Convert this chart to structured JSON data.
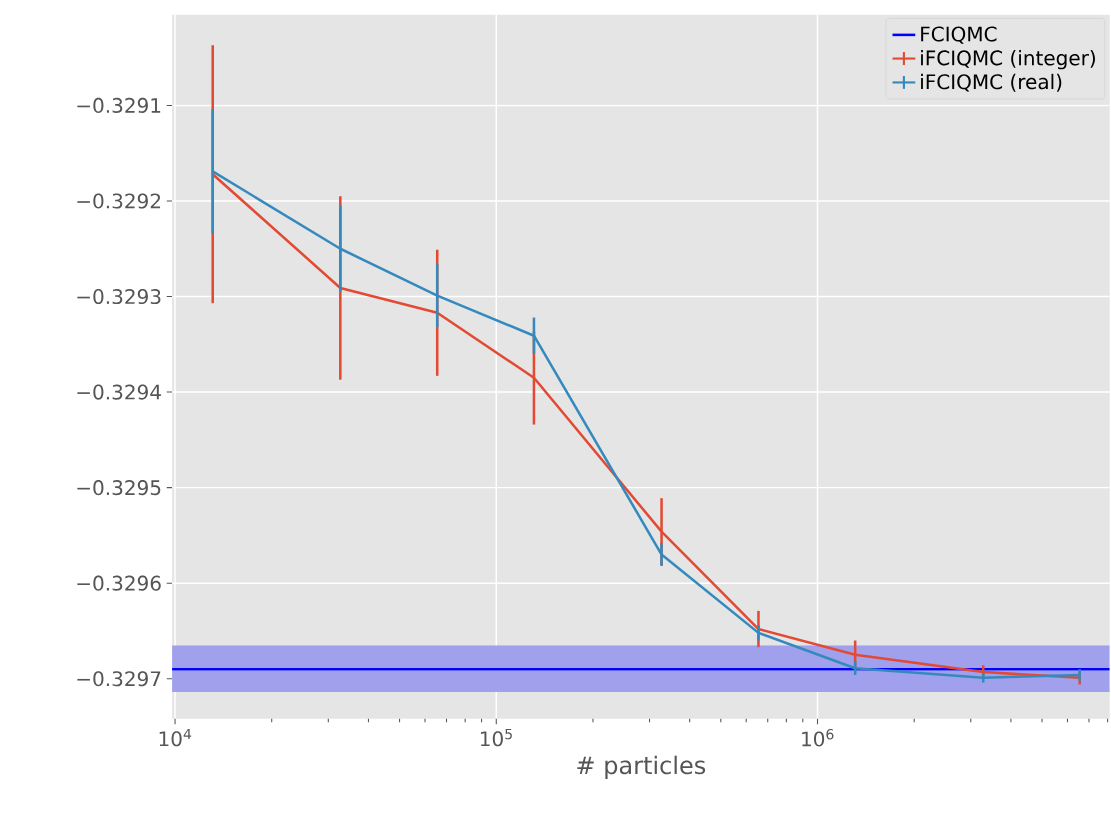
{
  "chart_data": {
    "type": "line",
    "xlabel": "# particles",
    "xlim": [
      9790,
      8120000
    ],
    "ylim": [
      -0.329742,
      -0.329005
    ],
    "log": "x",
    "grid": true,
    "legend": "top right",
    "xticks": [
      {
        "value": 10000,
        "label": "10$^{4}$"
      },
      {
        "value": 100000,
        "label": "10$^{5}$"
      },
      {
        "value": 1000000,
        "label": "10$^{6}$"
      }
    ],
    "yticks": [
      {
        "value": -0.3291,
        "label": "−0.3291"
      },
      {
        "value": -0.3292,
        "label": "−0.3292"
      },
      {
        "value": -0.3293,
        "label": "−0.3293"
      },
      {
        "value": -0.3294,
        "label": "−0.3294"
      },
      {
        "value": -0.3295,
        "label": "−0.3295"
      },
      {
        "value": -0.3296,
        "label": "−0.3296"
      },
      {
        "value": -0.3297,
        "label": "−0.3297"
      }
    ],
    "x": [
      13100,
      32700,
      65500,
      131000,
      327000,
      655000,
      1310000,
      3280000,
      6550000
    ],
    "series": [
      {
        "name": "FCIQMC",
        "color": "#0000ff",
        "x": [
          9790,
          8120000
        ],
        "values": [
          -0.32969,
          -0.32969
        ],
        "lower": [
          -0.329714,
          -0.329714
        ],
        "upper": [
          -0.329665,
          -0.329665
        ]
      },
      {
        "name": "iFCIQMC (integer)",
        "color": "#e24a33",
        "values": [
          -0.329172,
          -0.329291,
          -0.329317,
          -0.329385,
          -0.329546,
          -0.329648,
          -0.329675,
          -0.329693,
          -0.329699
        ],
        "errors": [
          0.000135,
          9.6e-05,
          6.6e-05,
          4.9e-05,
          3.5e-05,
          1.9e-05,
          1.5e-05,
          7e-06,
          7e-06
        ]
      },
      {
        "name": "iFCIQMC (real)",
        "color": "#348abd",
        "values": [
          -0.329169,
          -0.32925,
          -0.329299,
          -0.329341,
          -0.32957,
          -0.329652,
          -0.329689,
          -0.329699,
          -0.329696
        ],
        "errors": [
          6.5e-05,
          4.5e-05,
          3.3e-05,
          1.9e-05,
          1.2e-05,
          8e-06,
          7e-06,
          5e-06,
          6e-06
        ]
      }
    ]
  }
}
